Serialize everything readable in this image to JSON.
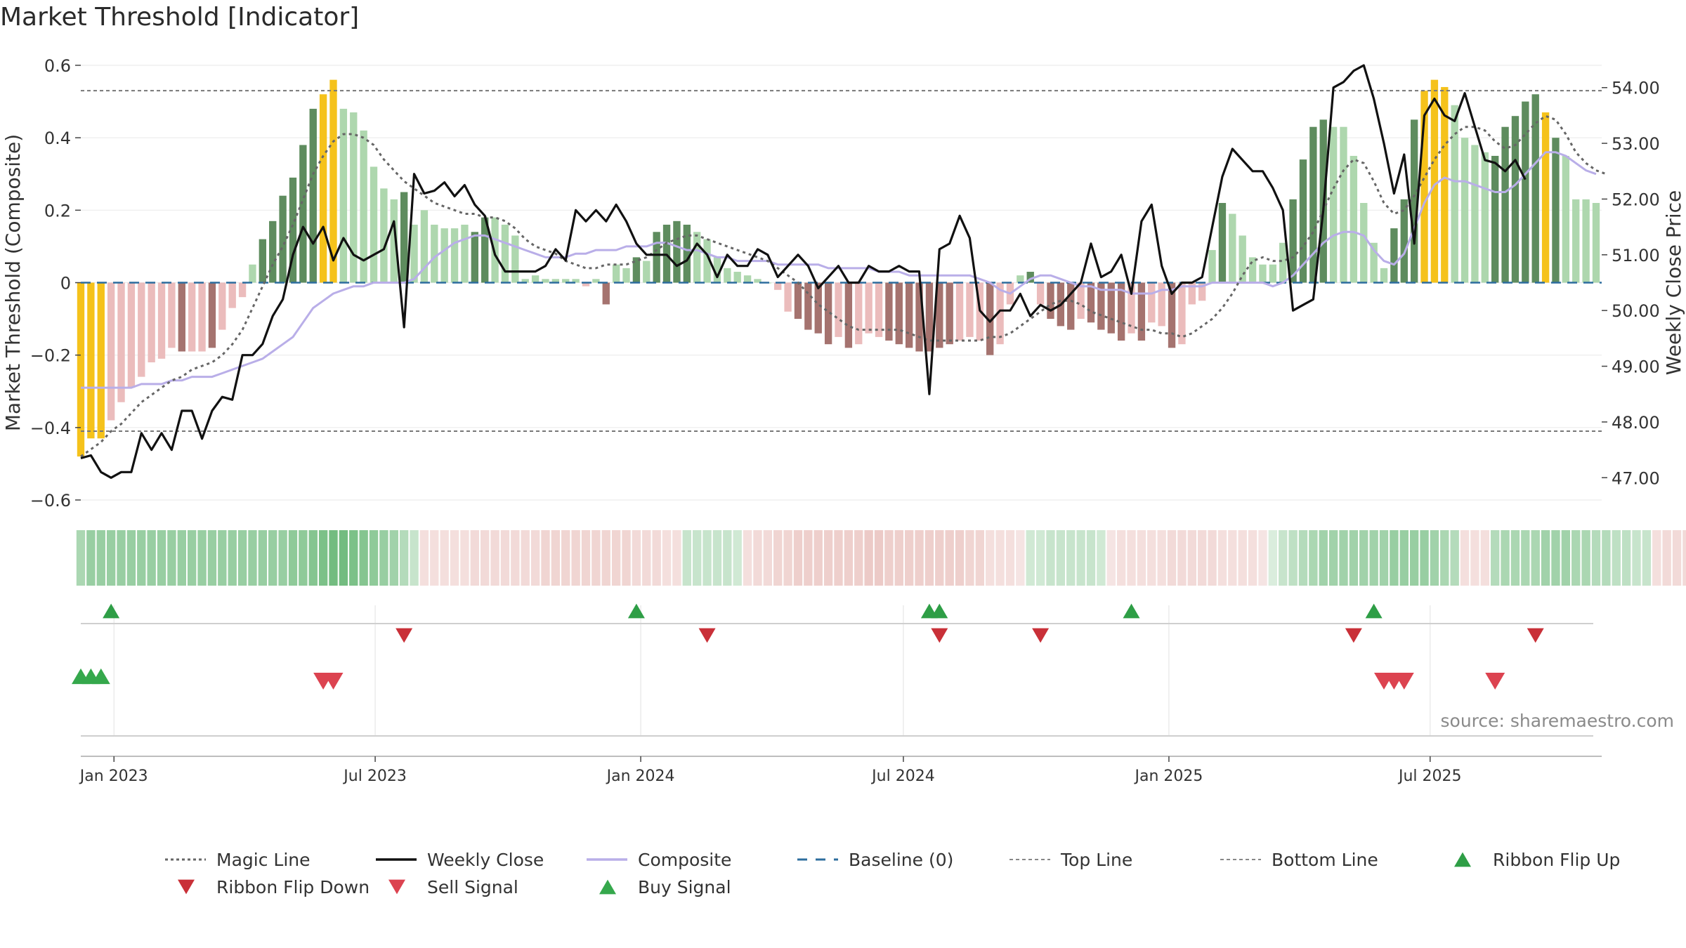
{
  "title": "Market Threshold [Indicator]",
  "source": "source: sharemaestro.com",
  "chart_data": {
    "type": "bar",
    "title": "Market Threshold [Indicator]",
    "ylabel_left": "Market Threshold (Composite)",
    "ylabel_right": "Weekly Close Price",
    "ylim_left": [
      -0.6,
      0.6
    ],
    "ylim_right": [
      47.0,
      54.0
    ],
    "yticks_left": [
      {
        "v": 0.6,
        "label": "0.6"
      },
      {
        "v": 0.4,
        "label": "0.4"
      },
      {
        "v": 0.2,
        "label": "0.2"
      },
      {
        "v": 0,
        "label": "0"
      },
      {
        "v": -0.2,
        "label": "−0.2"
      },
      {
        "v": -0.4,
        "label": "−0.4"
      },
      {
        "v": -0.6,
        "label": "−0.6"
      }
    ],
    "yticks_right": [
      {
        "v": 54.0,
        "label": "54.00"
      },
      {
        "v": 53.0,
        "label": "53.00"
      },
      {
        "v": 52.0,
        "label": "52.00"
      },
      {
        "v": 51.0,
        "label": "51.00"
      },
      {
        "v": 50.0,
        "label": "50.00"
      },
      {
        "v": 49.0,
        "label": "49.00"
      },
      {
        "v": 48.0,
        "label": "48.00"
      },
      {
        "v": 47.0,
        "label": "47.00"
      }
    ],
    "x_start": "2022-12-09",
    "x_step_days": 7,
    "xticks": [
      {
        "date": "2023-01-01",
        "label": "Jan 2023"
      },
      {
        "date": "2023-07-01",
        "label": "Jul 2023"
      },
      {
        "date": "2024-01-01",
        "label": "Jan 2024"
      },
      {
        "date": "2024-07-01",
        "label": "Jul 2024"
      },
      {
        "date": "2025-01-01",
        "label": "Jan 2025"
      },
      {
        "date": "2025-07-01",
        "label": "Jul 2025"
      }
    ],
    "top_line": 0.53,
    "bottom_line": -0.41,
    "baseline": 0,
    "grid": true,
    "legend_position": "bottom",
    "colors": {
      "bar_pos_strong": "#5e8c5e",
      "bar_pos_weak": "#aed7ae",
      "bar_neg_strong": "#a5736f",
      "bar_neg_weak": "#ebbcbc",
      "bar_extreme": "#f5c21b",
      "weekly_close": "#111111",
      "composite": "#b9aee8",
      "magic_line": "#666666",
      "baseline": "#2d6d9e",
      "threshold_lines": "#777777",
      "signal_up": "#2e9e46",
      "signal_down": "#d0343e",
      "ribbon_pos": "#44a655",
      "ribbon_neg": "#d9958f"
    },
    "threshold_bars": [
      -0.48,
      -0.43,
      -0.43,
      -0.38,
      -0.33,
      -0.29,
      -0.26,
      -0.22,
      -0.21,
      -0.18,
      -0.19,
      -0.19,
      -0.19,
      -0.18,
      -0.13,
      -0.07,
      -0.04,
      0.05,
      0.12,
      0.17,
      0.24,
      0.29,
      0.38,
      0.48,
      0.52,
      0.56,
      0.48,
      0.47,
      0.42,
      0.32,
      0.26,
      0.23,
      0.25,
      0.16,
      0.2,
      0.16,
      0.15,
      0.15,
      0.16,
      0.14,
      0.18,
      0.18,
      0.16,
      0.13,
      0.01,
      0.02,
      0.01,
      0.01,
      0.01,
      0.01,
      -0.01,
      0.01,
      -0.06,
      0.05,
      0.04,
      0.07,
      0.06,
      0.14,
      0.16,
      0.17,
      0.16,
      0.14,
      0.12,
      0.07,
      0.04,
      0.03,
      0.02,
      0.01,
      0.0,
      -0.02,
      -0.08,
      -0.1,
      -0.13,
      -0.14,
      -0.17,
      -0.15,
      -0.18,
      -0.17,
      -0.14,
      -0.15,
      -0.16,
      -0.17,
      -0.18,
      -0.19,
      -0.19,
      -0.18,
      -0.17,
      -0.16,
      -0.15,
      -0.16,
      -0.2,
      -0.17,
      -0.06,
      0.02,
      0.03,
      -0.06,
      -0.1,
      -0.12,
      -0.13,
      -0.1,
      -0.11,
      -0.13,
      -0.14,
      -0.16,
      -0.14,
      -0.16,
      -0.11,
      -0.12,
      -0.18,
      -0.17,
      -0.06,
      -0.05,
      0.09,
      0.22,
      0.19,
      0.13,
      0.07,
      0.05,
      0.05,
      0.11,
      0.23,
      0.34,
      0.43,
      0.45,
      0.43,
      0.43,
      0.35,
      0.22,
      0.11,
      0.04,
      0.15,
      0.23,
      0.45,
      0.53,
      0.56,
      0.54,
      0.49,
      0.4,
      0.38,
      0.36,
      0.35,
      0.43,
      0.46,
      0.5,
      0.52,
      0.47,
      0.4,
      0.35,
      0.23,
      0.23,
      0.22
    ],
    "bar_tones": [
      "extreme",
      "extreme",
      "extreme",
      "neg_weak",
      "neg_weak",
      "neg_weak",
      "neg_weak",
      "neg_weak",
      "neg_weak",
      "neg_weak",
      "neg_strong",
      "neg_weak",
      "neg_weak",
      "neg_strong",
      "neg_weak",
      "neg_weak",
      "neg_weak",
      "pos_weak",
      "pos_strong",
      "pos_strong",
      "pos_strong",
      "pos_strong",
      "pos_strong",
      "pos_strong",
      "extreme",
      "extreme",
      "pos_weak",
      "pos_weak",
      "pos_weak",
      "pos_weak",
      "pos_weak",
      "pos_weak",
      "pos_strong",
      "pos_weak",
      "pos_weak",
      "pos_weak",
      "pos_weak",
      "pos_weak",
      "pos_weak",
      "pos_strong",
      "pos_strong",
      "pos_weak",
      "pos_weak",
      "pos_weak",
      "pos_weak",
      "pos_weak",
      "pos_weak",
      "pos_weak",
      "pos_weak",
      "pos_weak",
      "neg_weak",
      "pos_weak",
      "neg_strong",
      "pos_weak",
      "pos_weak",
      "pos_strong",
      "pos_weak",
      "pos_strong",
      "pos_strong",
      "pos_strong",
      "pos_strong",
      "pos_weak",
      "pos_weak",
      "pos_weak",
      "pos_weak",
      "pos_weak",
      "pos_weak",
      "pos_weak",
      "pos_weak",
      "neg_weak",
      "neg_weak",
      "neg_strong",
      "neg_strong",
      "neg_strong",
      "neg_strong",
      "neg_weak",
      "neg_strong",
      "neg_weak",
      "neg_weak",
      "neg_weak",
      "neg_strong",
      "neg_strong",
      "neg_strong",
      "neg_strong",
      "neg_strong",
      "neg_strong",
      "neg_strong",
      "neg_weak",
      "neg_weak",
      "neg_weak",
      "neg_strong",
      "neg_weak",
      "neg_weak",
      "pos_weak",
      "pos_strong",
      "neg_weak",
      "neg_strong",
      "neg_strong",
      "neg_strong",
      "neg_weak",
      "neg_strong",
      "neg_strong",
      "neg_strong",
      "neg_strong",
      "neg_weak",
      "neg_strong",
      "neg_weak",
      "neg_weak",
      "neg_strong",
      "neg_weak",
      "neg_weak",
      "neg_weak",
      "pos_weak",
      "pos_strong",
      "pos_weak",
      "pos_weak",
      "pos_weak",
      "pos_weak",
      "pos_weak",
      "pos_weak",
      "pos_strong",
      "pos_strong",
      "pos_strong",
      "pos_strong",
      "pos_weak",
      "pos_weak",
      "pos_weak",
      "pos_weak",
      "pos_weak",
      "pos_weak",
      "pos_strong",
      "pos_strong",
      "pos_strong",
      "extreme",
      "extreme",
      "extreme",
      "pos_weak",
      "pos_weak",
      "pos_weak",
      "pos_weak",
      "pos_strong",
      "pos_strong",
      "pos_strong",
      "pos_strong",
      "pos_strong",
      "extreme",
      "pos_strong",
      "pos_weak",
      "pos_weak",
      "pos_weak",
      "pos_weak",
      "pos_weak"
    ],
    "weekly_close": [
      47.35,
      47.4,
      47.1,
      47.0,
      47.1,
      47.1,
      47.8,
      47.5,
      47.8,
      47.5,
      48.2,
      48.2,
      47.7,
      48.2,
      48.45,
      48.4,
      49.2,
      49.2,
      49.4,
      49.9,
      50.2,
      51.0,
      51.5,
      51.2,
      51.5,
      50.9,
      51.3,
      51.0,
      50.9,
      51.0,
      51.1,
      51.6,
      49.7,
      52.45,
      52.1,
      52.15,
      52.3,
      52.05,
      52.25,
      51.9,
      51.7,
      51.0,
      50.7,
      50.7,
      50.7,
      50.7,
      50.8,
      51.1,
      50.9,
      51.8,
      51.6,
      51.8,
      51.6,
      51.9,
      51.6,
      51.2,
      51.0,
      51.0,
      51.0,
      50.8,
      50.9,
      51.2,
      51.0,
      50.6,
      51.0,
      50.8,
      50.8,
      51.1,
      51.0,
      50.6,
      50.8,
      51.0,
      50.8,
      50.4,
      50.6,
      50.8,
      50.5,
      50.5,
      50.8,
      50.7,
      50.7,
      50.8,
      50.7,
      50.7,
      48.5,
      51.1,
      51.2,
      51.7,
      51.3,
      50.0,
      49.8,
      50.0,
      50.0,
      50.3,
      49.9,
      50.1,
      50.0,
      50.1,
      50.3,
      50.5,
      51.2,
      50.6,
      50.7,
      51.0,
      50.3,
      51.6,
      51.9,
      50.8,
      50.3,
      50.5,
      50.5,
      50.6,
      51.5,
      52.4,
      52.9,
      52.7,
      52.5,
      52.5,
      52.2,
      51.8,
      50.0,
      50.1,
      50.2,
      51.8,
      54.0,
      54.1,
      54.3,
      54.4,
      53.8,
      53.0,
      52.1,
      52.8,
      51.2,
      53.5,
      53.8,
      53.5,
      53.4,
      53.9,
      53.3,
      52.7,
      52.65,
      52.5,
      52.7,
      52.35
    ],
    "composite": [
      -0.29,
      -0.29,
      -0.29,
      -0.29,
      -0.29,
      -0.29,
      -0.28,
      -0.28,
      -0.28,
      -0.27,
      -0.27,
      -0.26,
      -0.26,
      -0.26,
      -0.25,
      -0.24,
      -0.23,
      -0.22,
      -0.21,
      -0.19,
      -0.17,
      -0.15,
      -0.11,
      -0.07,
      -0.05,
      -0.03,
      -0.02,
      -0.01,
      -0.01,
      0.0,
      0.0,
      0.0,
      0.0,
      0.01,
      0.04,
      0.07,
      0.09,
      0.11,
      0.12,
      0.13,
      0.13,
      0.12,
      0.11,
      0.1,
      0.09,
      0.08,
      0.07,
      0.07,
      0.07,
      0.08,
      0.08,
      0.09,
      0.09,
      0.09,
      0.1,
      0.1,
      0.1,
      0.11,
      0.11,
      0.1,
      0.09,
      0.09,
      0.08,
      0.07,
      0.07,
      0.06,
      0.06,
      0.06,
      0.06,
      0.05,
      0.05,
      0.05,
      0.05,
      0.05,
      0.04,
      0.04,
      0.04,
      0.04,
      0.04,
      0.03,
      0.03,
      0.03,
      0.02,
      0.02,
      0.02,
      0.02,
      0.02,
      0.02,
      0.02,
      0.01,
      0.0,
      -0.02,
      -0.03,
      -0.01,
      0.01,
      0.02,
      0.02,
      0.01,
      0.0,
      -0.01,
      -0.01,
      -0.02,
      -0.02,
      -0.02,
      -0.03,
      -0.03,
      -0.03,
      -0.02,
      -0.02,
      -0.01,
      -0.01,
      -0.01,
      0.0,
      0.0,
      0.0,
      0.0,
      0.0,
      0.0,
      -0.01,
      0.0,
      0.02,
      0.05,
      0.08,
      0.11,
      0.13,
      0.14,
      0.14,
      0.13,
      0.09,
      0.06,
      0.05,
      0.08,
      0.15,
      0.22,
      0.27,
      0.29,
      0.28,
      0.28,
      0.27,
      0.26,
      0.25,
      0.25,
      0.27,
      0.3,
      0.33,
      0.36,
      0.36,
      0.35,
      0.33,
      0.31,
      0.3
    ],
    "magic_line": [
      -0.48,
      -0.46,
      -0.44,
      -0.41,
      -0.39,
      -0.36,
      -0.33,
      -0.31,
      -0.29,
      -0.27,
      -0.26,
      -0.24,
      -0.23,
      -0.22,
      -0.2,
      -0.17,
      -0.13,
      -0.07,
      -0.01,
      0.05,
      0.1,
      0.16,
      0.23,
      0.3,
      0.35,
      0.39,
      0.41,
      0.41,
      0.4,
      0.38,
      0.34,
      0.31,
      0.28,
      0.26,
      0.24,
      0.22,
      0.21,
      0.2,
      0.19,
      0.19,
      0.18,
      0.18,
      0.17,
      0.15,
      0.12,
      0.1,
      0.09,
      0.08,
      0.06,
      0.05,
      0.04,
      0.04,
      0.05,
      0.05,
      0.05,
      0.06,
      0.07,
      0.09,
      0.11,
      0.12,
      0.13,
      0.13,
      0.12,
      0.11,
      0.1,
      0.09,
      0.08,
      0.07,
      0.06,
      0.04,
      0.02,
      0.0,
      -0.03,
      -0.06,
      -0.08,
      -0.1,
      -0.12,
      -0.13,
      -0.13,
      -0.13,
      -0.13,
      -0.13,
      -0.14,
      -0.15,
      -0.16,
      -0.16,
      -0.16,
      -0.16,
      -0.16,
      -0.16,
      -0.15,
      -0.15,
      -0.14,
      -0.12,
      -0.1,
      -0.08,
      -0.06,
      -0.05,
      -0.05,
      -0.06,
      -0.08,
      -0.09,
      -0.1,
      -0.11,
      -0.12,
      -0.13,
      -0.13,
      -0.14,
      -0.14,
      -0.15,
      -0.14,
      -0.12,
      -0.1,
      -0.07,
      -0.03,
      0.02,
      0.06,
      0.07,
      0.06,
      0.06,
      0.07,
      0.1,
      0.14,
      0.2,
      0.26,
      0.31,
      0.34,
      0.33,
      0.28,
      0.22,
      0.19,
      0.2,
      0.24,
      0.29,
      0.34,
      0.38,
      0.41,
      0.43,
      0.43,
      0.42,
      0.39,
      0.37,
      0.38,
      0.41,
      0.44,
      0.46,
      0.45,
      0.41,
      0.36,
      0.33,
      0.31,
      0.3
    ],
    "ribbon_intensity": [
      0.45,
      0.55,
      0.55,
      0.55,
      0.55,
      0.55,
      0.55,
      0.55,
      0.55,
      0.55,
      0.55,
      0.55,
      0.55,
      0.55,
      0.55,
      0.55,
      0.55,
      0.55,
      0.55,
      0.55,
      0.55,
      0.6,
      0.6,
      0.65,
      0.7,
      0.75,
      0.75,
      0.7,
      0.65,
      0.6,
      0.55,
      0.5,
      0.4,
      0.3,
      -0.3,
      -0.3,
      -0.3,
      -0.3,
      -0.3,
      -0.35,
      -0.35,
      -0.35,
      -0.35,
      -0.35,
      -0.35,
      -0.35,
      -0.4,
      -0.4,
      -0.4,
      -0.4,
      -0.4,
      -0.4,
      -0.4,
      -0.4,
      -0.4,
      -0.35,
      -0.35,
      -0.35,
      -0.3,
      -0.3,
      0.3,
      0.3,
      0.3,
      0.3,
      0.3,
      0.25,
      -0.3,
      -0.35,
      -0.35,
      -0.4,
      -0.4,
      -0.45,
      -0.45,
      -0.45,
      -0.45,
      -0.45,
      -0.45,
      -0.45,
      -0.5,
      -0.5,
      -0.45,
      -0.45,
      -0.45,
      -0.45,
      -0.45,
      -0.45,
      -0.45,
      -0.45,
      -0.4,
      -0.4,
      -0.3,
      -0.3,
      -0.3,
      -0.25,
      0.25,
      0.25,
      0.3,
      0.3,
      0.3,
      0.3,
      0.3,
      0.25,
      -0.25,
      -0.3,
      -0.3,
      -0.3,
      -0.3,
      -0.3,
      -0.35,
      -0.35,
      -0.35,
      -0.35,
      -0.35,
      -0.3,
      -0.3,
      -0.3,
      -0.3,
      -0.25,
      0.2,
      0.3,
      0.35,
      0.4,
      0.45,
      0.5,
      0.5,
      0.5,
      0.5,
      0.5,
      0.5,
      0.5,
      0.55,
      0.55,
      0.55,
      0.55,
      0.5,
      0.45,
      0.4,
      -0.3,
      -0.3,
      -0.3,
      0.4,
      0.45,
      0.45,
      0.45,
      0.45,
      0.5,
      0.5,
      0.5,
      0.45,
      0.45,
      0.4,
      0.4,
      0.35,
      0.35,
      0.3,
      0.3,
      -0.3,
      -0.35,
      -0.35,
      -0.35,
      -0.3
    ],
    "ribbon_flip_up_dates": [
      "2022-12-30",
      "2023-12-29",
      "2024-07-19",
      "2024-07-26",
      "2024-12-06",
      "2025-05-23"
    ],
    "ribbon_flip_down_dates": [
      "2023-07-21",
      "2024-02-16",
      "2024-07-26",
      "2024-10-04",
      "2025-05-09",
      "2025-09-12"
    ],
    "buy_signal_dates": [
      "2022-12-09",
      "2022-12-16",
      "2022-12-23"
    ],
    "sell_signal_dates": [
      "2023-05-26",
      "2023-06-02",
      "2025-05-30",
      "2025-06-06",
      "2025-06-13",
      "2025-08-15"
    ],
    "legend": [
      {
        "label": "Magic Line",
        "kind": "dotted",
        "color": "#666666"
      },
      {
        "label": "Weekly Close",
        "kind": "solid",
        "color": "#111111"
      },
      {
        "label": "Composite",
        "kind": "solid",
        "color": "#b9aee8"
      },
      {
        "label": "Baseline (0)",
        "kind": "dashed",
        "color": "#2d6d9e"
      },
      {
        "label": "Top Line",
        "kind": "thin-dash",
        "color": "#888888"
      },
      {
        "label": "Bottom Line",
        "kind": "thin-dash",
        "color": "#888888"
      },
      {
        "label": "Ribbon Flip Up",
        "kind": "tri-up",
        "color": "#2e9e46"
      },
      {
        "label": "Ribbon Flip Down",
        "kind": "tri-down",
        "color": "#c93038"
      },
      {
        "label": "Sell Signal",
        "kind": "tri-down",
        "color": "#dc4350"
      },
      {
        "label": "Buy Signal",
        "kind": "tri-up",
        "color": "#35a84c"
      }
    ]
  }
}
